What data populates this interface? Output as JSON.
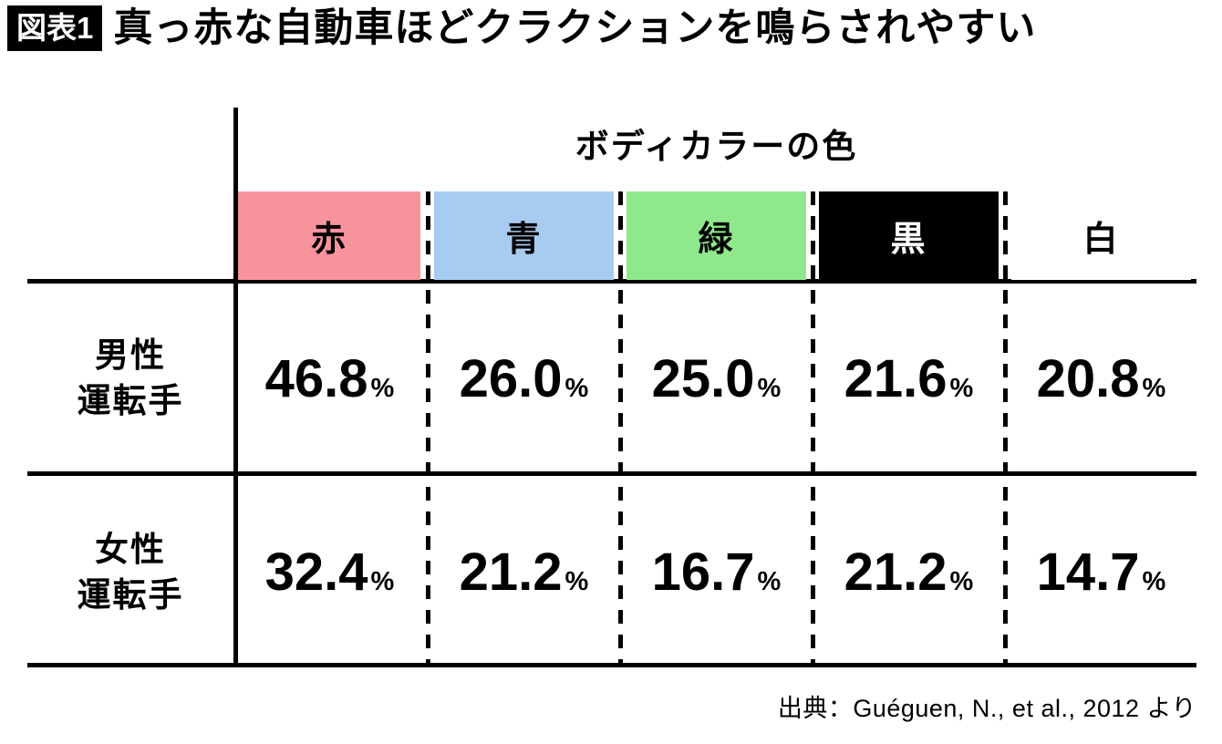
{
  "title": {
    "badge": "図表1",
    "text": "真っ赤な自動車ほどクラクションを鳴らされやすい"
  },
  "table": {
    "header_title": "ボディカラーの色",
    "percent_sign": "%",
    "columns": [
      {
        "label": "赤",
        "color": "#f7939d",
        "text_color": "#000000"
      },
      {
        "label": "青",
        "color": "#a8ccf0",
        "text_color": "#000000"
      },
      {
        "label": "緑",
        "color": "#8fe98c",
        "text_color": "#000000"
      },
      {
        "label": "黒",
        "color": "#000000",
        "text_color": "#ffffff"
      },
      {
        "label": "白",
        "color": "#ffffff",
        "text_color": "#000000"
      }
    ],
    "rows": [
      {
        "label_line1": "男性",
        "label_line2": "運転手",
        "values": [
          "46.8",
          "26.0",
          "25.0",
          "21.6",
          "20.8"
        ]
      },
      {
        "label_line1": "女性",
        "label_line2": "運転手",
        "values": [
          "32.4",
          "21.2",
          "16.7",
          "21.2",
          "14.7"
        ]
      }
    ]
  },
  "source": "出典：Guéguen, N., et al., 2012 より",
  "chart_data": {
    "type": "table",
    "title": "真っ赤な自動車ほどクラクションを鳴らされやすい",
    "subtitle_badge": "図表1",
    "column_group_label": "ボディカラーの色",
    "categories": [
      "赤",
      "青",
      "緑",
      "黒",
      "白"
    ],
    "series": [
      {
        "name": "男性運転手",
        "values": [
          46.8,
          26.0,
          25.0,
          21.6,
          20.8
        ]
      },
      {
        "name": "女性運転手",
        "values": [
          32.4,
          21.2,
          16.7,
          21.2,
          14.7
        ]
      }
    ],
    "unit": "%",
    "source": "出典：Guéguen, N., et al., 2012 より"
  }
}
